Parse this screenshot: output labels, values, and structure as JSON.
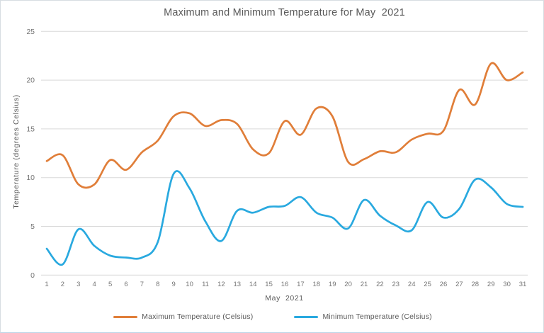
{
  "chart_data": {
    "type": "line",
    "title": "Maximum and Minimum Temperature for May  2021",
    "xlabel": "May  2021",
    "ylabel": "Temperature (degrees Celsius)",
    "x": [
      1,
      2,
      3,
      4,
      5,
      6,
      7,
      8,
      9,
      10,
      11,
      12,
      13,
      14,
      15,
      16,
      17,
      18,
      19,
      20,
      21,
      22,
      23,
      24,
      25,
      26,
      27,
      28,
      29,
      30,
      31
    ],
    "series": [
      {
        "name": "Maximum Temperature (Celsius)",
        "color": "#E07E39",
        "values": [
          11.7,
          12.3,
          9.3,
          9.3,
          11.8,
          10.8,
          12.6,
          13.8,
          16.3,
          16.6,
          15.3,
          15.9,
          15.5,
          12.9,
          12.5,
          15.8,
          14.4,
          17.1,
          16.3,
          11.6,
          11.9,
          12.7,
          12.6,
          13.9,
          14.5,
          14.8,
          19.0,
          17.5,
          21.7,
          20.0,
          20.8
        ]
      },
      {
        "name": "Minimum Temperature (Celsius)",
        "color": "#29A9DF",
        "values": [
          2.7,
          1.1,
          4.7,
          3.0,
          2.0,
          1.8,
          1.8,
          3.4,
          10.4,
          8.9,
          5.5,
          3.5,
          6.6,
          6.4,
          7.0,
          7.1,
          8.0,
          6.4,
          5.9,
          4.8,
          7.7,
          6.1,
          5.1,
          4.6,
          7.5,
          5.9,
          6.8,
          9.8,
          9.0,
          7.3,
          7.0
        ]
      }
    ],
    "ylim": [
      0,
      25
    ],
    "yticks": [
      0,
      5,
      10,
      15,
      20,
      25
    ],
    "grid": "horizontal",
    "legend_position": "bottom",
    "smooth": true
  },
  "colors": {
    "title_text": "#595959",
    "axis_text": "#747474",
    "gridline": "#d9d9d9",
    "frame_border": "#d7dde2"
  }
}
